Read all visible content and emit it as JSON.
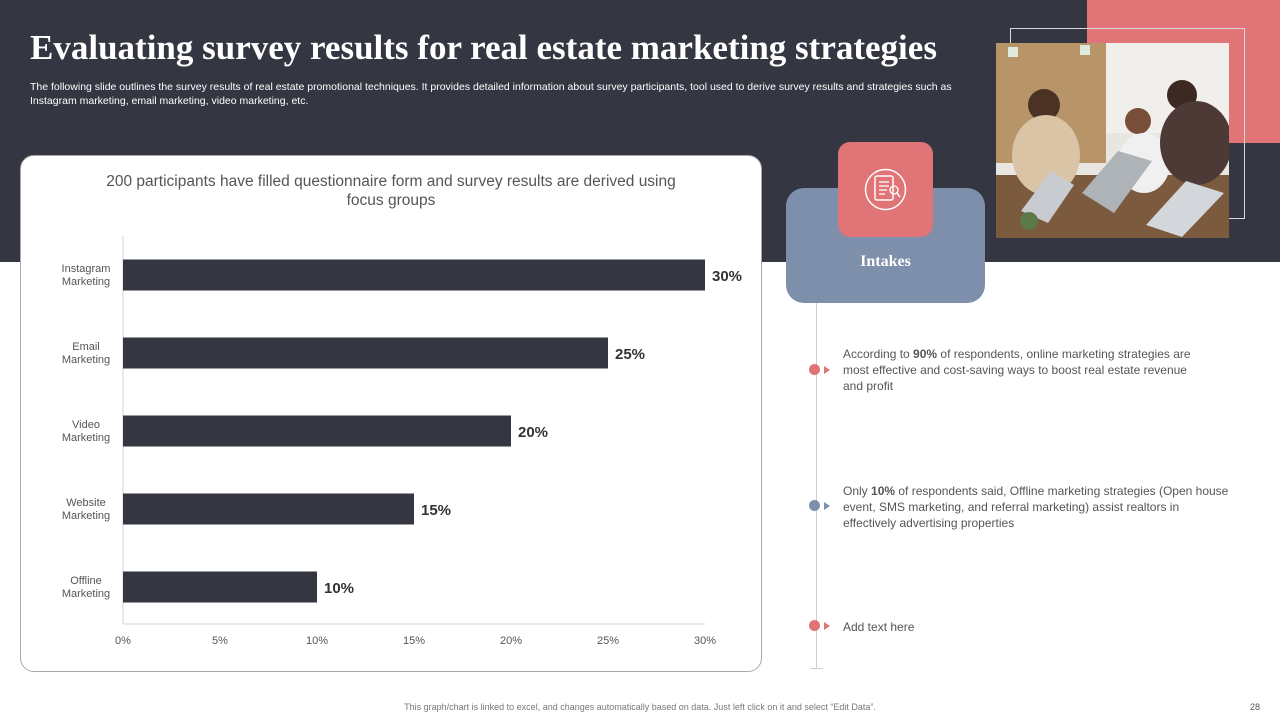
{
  "header": {
    "title": "Evaluating survey results for real estate marketing strategies",
    "description": "The following slide outlines the survey results of real estate promotional techniques. It provides detailed information about survey participants, tool used to derive survey results and strategies such as Instagram marketing, email marketing, video marketing, etc."
  },
  "chart_card": {
    "heading": "200 participants have filled questionnaire form and survey results are derived using focus groups"
  },
  "chart_data": {
    "type": "bar",
    "orientation": "horizontal",
    "categories": [
      "Instagram Marketing",
      "Email Marketing",
      "Video Marketing",
      "Website Marketing",
      "Offline Marketing"
    ],
    "category_lines": [
      [
        "Instagram",
        "Marketing"
      ],
      [
        "Email",
        "Marketing"
      ],
      [
        "Video",
        "Marketing"
      ],
      [
        "Website",
        "Marketing"
      ],
      [
        "Offline",
        "Marketing"
      ]
    ],
    "values": [
      30,
      25,
      20,
      15,
      10
    ],
    "data_labels": [
      "30%",
      "25%",
      "20%",
      "15%",
      "10%"
    ],
    "x_ticks": [
      "0%",
      "5%",
      "10%",
      "15%",
      "20%",
      "25%",
      "30%"
    ],
    "xlim": [
      0,
      30
    ],
    "grid": false,
    "bar_color": "#343641"
  },
  "intakes": {
    "label": "Intakes",
    "icon": "clipboard-document-icon"
  },
  "points": [
    {
      "text": "According to 90% of respondents, online marketing strategies are most effective and cost-saving ways to boost real estate revenue and profit",
      "dot_color": "#e07476"
    },
    {
      "text": "Only 10% of respondents said, Offline marketing strategies (Open house event, SMS marketing, and referral marketing) assist realtors in effectively advertising properties",
      "dot_color": "#7e8fac"
    },
    {
      "text": "Add text here",
      "dot_color": "#e07476"
    }
  ],
  "photo": {
    "icon": "team-meeting-photo"
  },
  "footer": {
    "note": "This graph/chart is linked to excel, and changes automatically based on data. Just left click on it and select “Edit Data”.",
    "page_number": "28"
  },
  "colors": {
    "dark": "#343641",
    "accent": "#e07476",
    "slate": "#7e8fac"
  }
}
